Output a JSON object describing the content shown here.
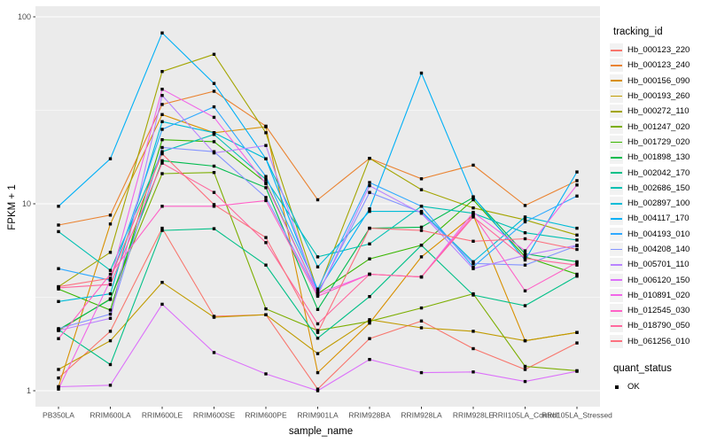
{
  "chart_data": {
    "type": "line",
    "title": "",
    "xlabel": "sample_name",
    "ylabel": "FPKM + 1",
    "y_scale": "log10",
    "ylim": [
      1,
      100
    ],
    "y_ticks": [
      1,
      10,
      100
    ],
    "y_minor_ticks": [
      3.162,
      31.62
    ],
    "grid": true,
    "legend_position": "right",
    "legend_title": "tracking_id",
    "point_shape": "black-square",
    "categories": [
      "PB350LA",
      "RRIM600LA",
      "RRIM600LE",
      "RRIM600SE",
      "RRIM600PE",
      "RRIM901LA",
      "RRIM928BA",
      "RRIM928LA",
      "RRIM928LE",
      "RRII105LA_Control",
      "RRII105LA_Stressed"
    ],
    "series": [
      {
        "name": "Hb_000123_220",
        "color": "#F8766D",
        "values": [
          1.17,
          2.08,
          7.4,
          2.5,
          2.55,
          1.02,
          1.9,
          2.36,
          1.68,
          1.3,
          1.8
        ]
      },
      {
        "name": "Hb_000123_240",
        "color": "#EA8331",
        "values": [
          7.7,
          8.7,
          34,
          40,
          26,
          10.5,
          17.5,
          13.6,
          16.1,
          9.8,
          13.3
        ]
      },
      {
        "name": "Hb_000156_090",
        "color": "#D89000",
        "values": [
          1.05,
          7.8,
          30,
          24,
          25.8,
          1.25,
          2.3,
          5.2,
          8.7,
          1.85,
          2.05
        ]
      },
      {
        "name": "Hb_000193_260",
        "color": "#C09B00",
        "values": [
          1.3,
          1.85,
          3.8,
          2.47,
          2.55,
          1.58,
          2.4,
          2.17,
          2.08,
          1.85,
          2.05
        ]
      },
      {
        "name": "Hb_000272_110",
        "color": "#A3A500",
        "values": [
          3.6,
          5.5,
          51,
          63,
          24,
          3.4,
          17.5,
          11.9,
          9.5,
          8.2,
          6.8
        ]
      },
      {
        "name": "Hb_001247_020",
        "color": "#7CAE00",
        "values": [
          2.1,
          3.1,
          14.5,
          14.7,
          2.74,
          2.1,
          2.35,
          2.77,
          3.3,
          1.35,
          1.28
        ]
      },
      {
        "name": "Hb_001729_020",
        "color": "#39B600",
        "values": [
          3.5,
          2.7,
          22,
          21.5,
          13,
          3.3,
          5.07,
          6.0,
          10.5,
          5.2,
          4.2
        ]
      },
      {
        "name": "Hb_001898_130",
        "color": "#00BB4E",
        "values": [
          2.12,
          3.08,
          17,
          15.9,
          12.2,
          2.72,
          7.4,
          7.5,
          10.8,
          5.4,
          4.9
        ]
      },
      {
        "name": "Hb_002042_170",
        "color": "#00C087",
        "values": [
          2.12,
          1.38,
          7.2,
          7.36,
          4.7,
          1.91,
          3.19,
          6.0,
          3.25,
          2.85,
          4.1
        ]
      },
      {
        "name": "Hb_002686_150",
        "color": "#00C0B2",
        "values": [
          7.1,
          4.4,
          19,
          23.5,
          13.5,
          5.2,
          6.1,
          9.7,
          8.9,
          7.0,
          6.4
        ]
      },
      {
        "name": "Hb_002897_100",
        "color": "#00BCD8",
        "values": [
          3.0,
          3.3,
          27.5,
          24,
          17.4,
          4.6,
          9.1,
          9.1,
          4.9,
          8.5,
          7.4
        ]
      },
      {
        "name": "Hb_004117_170",
        "color": "#00B0F6",
        "values": [
          9.7,
          17.4,
          82,
          44,
          17.4,
          3.4,
          9.4,
          50,
          10.9,
          5.0,
          14.8
        ]
      },
      {
        "name": "Hb_004193_010",
        "color": "#2FA9FF",
        "values": [
          4.5,
          3.9,
          25,
          33,
          14,
          3.5,
          13,
          9.7,
          4.6,
          8.0,
          11.0
        ]
      },
      {
        "name": "Hb_004208_140",
        "color": "#8494FF",
        "values": [
          2.15,
          2.57,
          20,
          19,
          10.8,
          3.3,
          11.5,
          9.0,
          4.8,
          4.7,
          5.97
        ]
      },
      {
        "name": "Hb_005701_110",
        "color": "#B983FF",
        "values": [
          2.1,
          2.44,
          38,
          18.7,
          20.5,
          3.25,
          12.5,
          8.9,
          4.5,
          5.3,
          6.0
        ]
      },
      {
        "name": "Hb_006120_150",
        "color": "#DC71FA",
        "values": [
          1.05,
          1.07,
          2.9,
          1.6,
          1.23,
          1.0,
          1.47,
          1.25,
          1.26,
          1.12,
          1.27
        ]
      },
      {
        "name": "Hb_010891_020",
        "color": "#F166E8",
        "values": [
          1.02,
          3.9,
          41,
          29,
          12.8,
          3.3,
          4.2,
          4.06,
          9.0,
          5.6,
          12.6
        ]
      },
      {
        "name": "Hb_012545_030",
        "color": "#FF61C7",
        "values": [
          1.9,
          4.2,
          9.7,
          9.7,
          10.4,
          3.2,
          4.2,
          4.06,
          8.7,
          3.42,
          4.85
        ]
      },
      {
        "name": "Hb_018790_050",
        "color": "#FF689E",
        "values": [
          3.55,
          3.7,
          16.5,
          11.5,
          6.2,
          2.28,
          4.2,
          4.06,
          8.5,
          5.1,
          4.7
        ]
      },
      {
        "name": "Hb_061256_010",
        "color": "#FC717F",
        "values": [
          3.6,
          4.0,
          18.5,
          9.9,
          6.6,
          2.05,
          7.4,
          7.2,
          6.3,
          6.5,
          5.7
        ]
      }
    ],
    "quant_legend": {
      "title": "quant_status",
      "items": [
        "OK"
      ]
    },
    "colors": {
      "panel_background": "#EBEBEB",
      "grid_line": "#FFFFFF",
      "point": "#000000",
      "tick_text": "#4D4D4D",
      "axis_title_text": "#000000",
      "legend_key_background": "#F2F2F2"
    }
  }
}
